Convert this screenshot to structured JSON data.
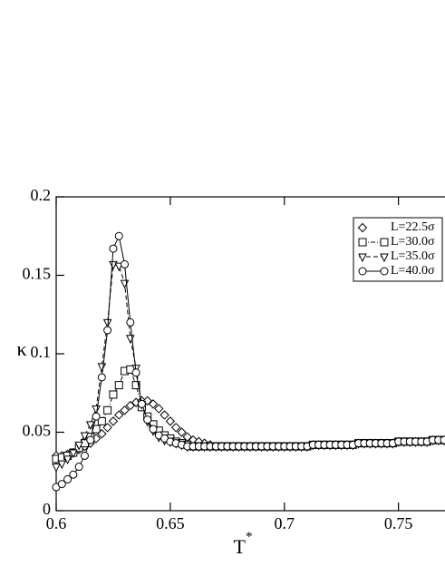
{
  "chart_data": {
    "type": "line",
    "xlabel": "T",
    "xlabel_sup": "*",
    "ylabel": "κ",
    "x": [
      0.6,
      0.6025,
      0.605,
      0.6075,
      0.61,
      0.6125,
      0.615,
      0.6175,
      0.62,
      0.6225,
      0.625,
      0.6275,
      0.63,
      0.6325,
      0.635,
      0.6375,
      0.64,
      0.6425,
      0.645,
      0.6475,
      0.65,
      0.6525,
      0.655,
      0.6575,
      0.66,
      0.6625,
      0.665,
      0.6675,
      0.67,
      0.6725,
      0.675,
      0.6775,
      0.68,
      0.6825,
      0.685,
      0.6875,
      0.69,
      0.6925,
      0.695,
      0.6975,
      0.7,
      0.7025,
      0.705,
      0.7075,
      0.71,
      0.7125,
      0.715,
      0.7175,
      0.72,
      0.7225,
      0.725,
      0.7275,
      0.73,
      0.7325,
      0.735,
      0.7375,
      0.74,
      0.7425,
      0.745,
      0.7475,
      0.75,
      0.7525,
      0.755,
      0.7575,
      0.76,
      0.7625,
      0.765,
      0.7675,
      0.77
    ],
    "series": [
      {
        "name": "L=22.5σ",
        "color": "#000000",
        "marker": "diamond",
        "dash": "none",
        "values": [
          0.035,
          0.035,
          0.036,
          0.037,
          0.039,
          0.041,
          0.043,
          0.046,
          0.049,
          0.053,
          0.057,
          0.061,
          0.064,
          0.067,
          0.069,
          0.07,
          0.07,
          0.068,
          0.065,
          0.061,
          0.057,
          0.053,
          0.05,
          0.047,
          0.045,
          0.044,
          0.043,
          0.042,
          0.041,
          0.041,
          0.041,
          0.041,
          0.041,
          0.041,
          0.041,
          0.041,
          0.041,
          0.041,
          0.041,
          0.041,
          0.041,
          0.041,
          0.041,
          0.041,
          0.041,
          0.042,
          0.042,
          0.042,
          0.042,
          0.042,
          0.042,
          0.042,
          0.042,
          0.043,
          0.043,
          0.043,
          0.043,
          0.043,
          0.043,
          0.043,
          0.044,
          0.044,
          0.044,
          0.044,
          0.044,
          0.044,
          0.045,
          0.045,
          0.045
        ]
      },
      {
        "name": "L=30.0σ",
        "color": "#000000",
        "marker": "square",
        "dash": "dashdotdot",
        "values": [
          0.033,
          0.034,
          0.035,
          0.037,
          0.04,
          0.043,
          0.047,
          0.052,
          0.057,
          0.064,
          0.074,
          0.08,
          0.089,
          0.09,
          0.08,
          0.066,
          0.06,
          0.055,
          0.051,
          0.048,
          0.046,
          0.044,
          0.043,
          0.042,
          0.041,
          0.041,
          0.041,
          0.041,
          0.041,
          0.041,
          0.041,
          0.041,
          0.041,
          0.041,
          0.041,
          0.041,
          0.041,
          0.041,
          0.041,
          0.041,
          0.041,
          0.041,
          0.041,
          0.041,
          0.041,
          0.042,
          0.042,
          0.042,
          0.042,
          0.042,
          0.042,
          0.042,
          0.042,
          0.043,
          0.043,
          0.043,
          0.043,
          0.043,
          0.043,
          0.043,
          0.044,
          0.044,
          0.044,
          0.044,
          0.044,
          0.044,
          0.045,
          0.045,
          0.045
        ]
      },
      {
        "name": "L=35.0σ",
        "color": "#000000",
        "marker": "triangle-down",
        "dash": "dashed",
        "values": [
          0.028,
          0.03,
          0.033,
          0.037,
          0.042,
          0.048,
          0.055,
          0.065,
          0.092,
          0.12,
          0.157,
          0.156,
          0.145,
          0.11,
          0.091,
          0.068,
          0.057,
          0.051,
          0.047,
          0.045,
          0.044,
          0.043,
          0.042,
          0.041,
          0.041,
          0.041,
          0.041,
          0.041,
          0.041,
          0.041,
          0.041,
          0.041,
          0.041,
          0.041,
          0.041,
          0.041,
          0.041,
          0.041,
          0.041,
          0.041,
          0.041,
          0.041,
          0.041,
          0.041,
          0.041,
          0.042,
          0.042,
          0.042,
          0.042,
          0.042,
          0.042,
          0.042,
          0.042,
          0.043,
          0.043,
          0.043,
          0.043,
          0.043,
          0.043,
          0.043,
          0.044,
          0.044,
          0.044,
          0.044,
          0.044,
          0.044,
          0.045,
          0.045,
          0.045
        ]
      },
      {
        "name": "L=40.0σ",
        "color": "#000000",
        "marker": "circle",
        "dash": "solid",
        "values": [
          0.015,
          0.017,
          0.02,
          0.023,
          0.028,
          0.035,
          0.045,
          0.06,
          0.085,
          0.115,
          0.167,
          0.175,
          0.157,
          0.12,
          0.088,
          0.068,
          0.058,
          0.052,
          0.048,
          0.046,
          0.044,
          0.043,
          0.042,
          0.041,
          0.041,
          0.041,
          0.041,
          0.041,
          0.041,
          0.041,
          0.041,
          0.041,
          0.041,
          0.041,
          0.041,
          0.041,
          0.041,
          0.041,
          0.041,
          0.041,
          0.041,
          0.041,
          0.041,
          0.041,
          0.041,
          0.042,
          0.042,
          0.042,
          0.042,
          0.042,
          0.042,
          0.042,
          0.042,
          0.043,
          0.043,
          0.043,
          0.043,
          0.043,
          0.043,
          0.043,
          0.044,
          0.044,
          0.044,
          0.044,
          0.044,
          0.044,
          0.045,
          0.045,
          0.045
        ]
      }
    ],
    "xlim": [
      0.6,
      0.77
    ],
    "xticks": [
      0.6,
      0.65,
      0.7,
      0.75
    ],
    "ylim": [
      0,
      0.2
    ],
    "yticks": [
      0,
      0.05,
      0.1,
      0.15,
      0.2
    ],
    "grid": false,
    "legend": "upper right"
  }
}
